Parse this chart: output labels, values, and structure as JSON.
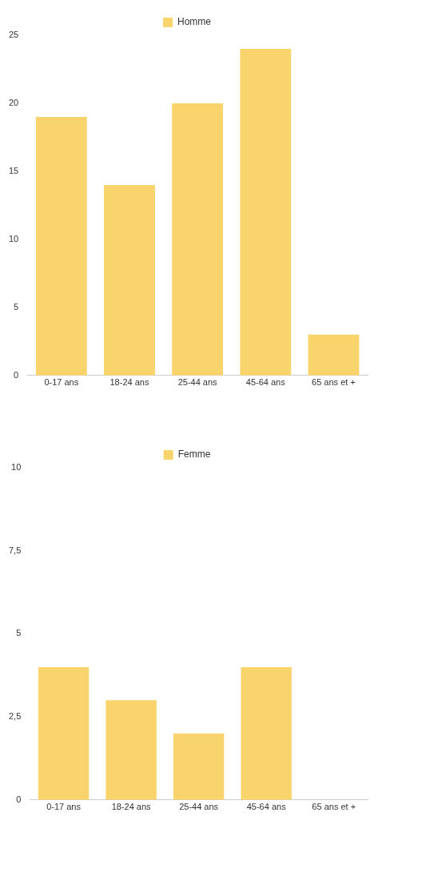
{
  "chart_data": [
    {
      "type": "bar",
      "categories": [
        "0-17 ans",
        "18-24 ans",
        "25-44 ans",
        "45-64 ans",
        "65 ans et +"
      ],
      "series": [
        {
          "name": "Homme",
          "color": "#f9d46c",
          "values": [
            19,
            14,
            20,
            24,
            3
          ]
        }
      ],
      "ylim": [
        0,
        25
      ],
      "yticks": [
        0,
        5,
        10,
        15,
        20,
        25
      ],
      "grid": false,
      "legend": "top"
    },
    {
      "type": "bar",
      "categories": [
        "0-17 ans",
        "18-24 ans",
        "25-44 ans",
        "45-64 ans",
        "65 ans et +"
      ],
      "series": [
        {
          "name": "Femme",
          "color": "#f9d46c",
          "values": [
            4,
            3,
            2,
            4,
            0
          ]
        }
      ],
      "ylim": [
        0,
        10
      ],
      "yticks": [
        0,
        {
          "value": 2.5,
          "label": "2,5"
        },
        {
          "value": 5,
          "label": "5"
        },
        {
          "value": 7.5,
          "label": "7,5"
        },
        10
      ],
      "grid": false,
      "legend": "top"
    }
  ]
}
